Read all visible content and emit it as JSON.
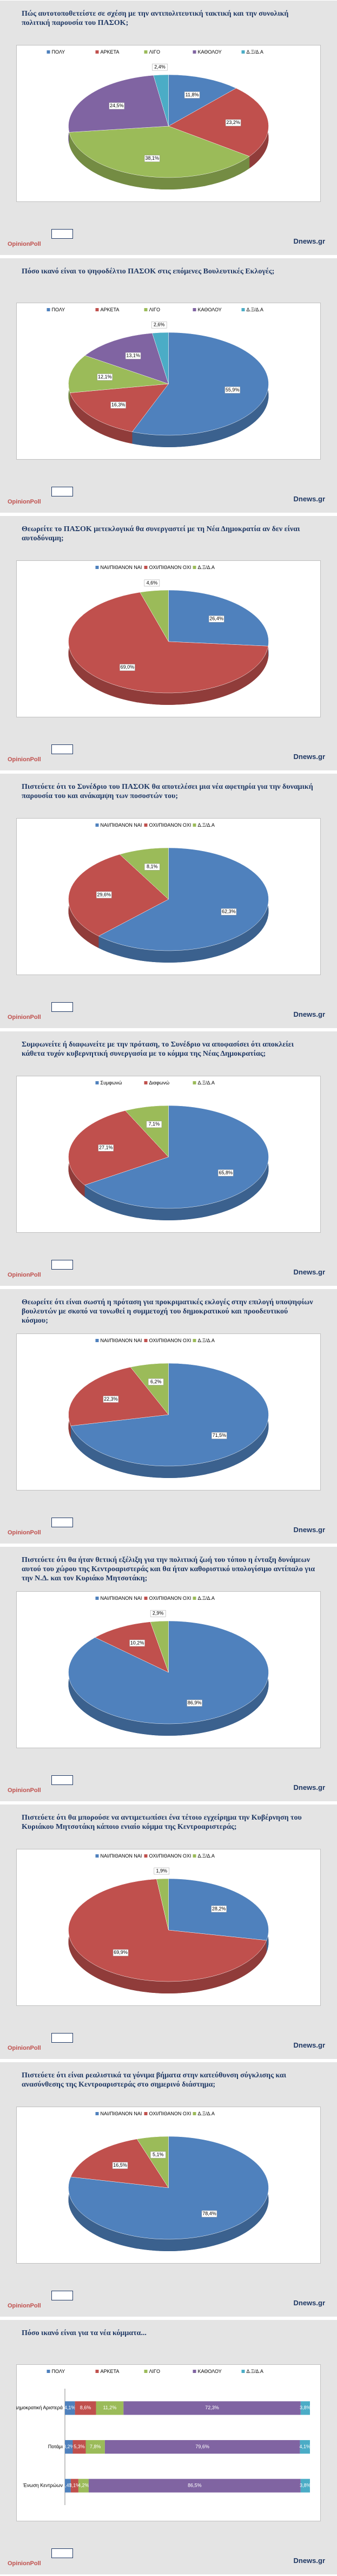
{
  "footer": {
    "logo": "OpinionPoll",
    "site": "Dnews.gr"
  },
  "chart_data": [
    {
      "type": "pie",
      "title": "Πώς αυτοτοποθετείστε σε σχέση με την αντιπολιτευτική τακτική και την συνολική πολιτική παρουσία του ΠΑΣΟΚ;",
      "categories": [
        "ΠΟΛΥ",
        "ΑΡΚΕΤΑ",
        "ΛΙΓΟ",
        "ΚΑΘΟΛΟΥ",
        "Δ.Ξ/Δ.Α"
      ],
      "values": [
        11.8,
        23.2,
        38.1,
        24.5,
        2.4
      ],
      "value_labels": [
        "11,8%",
        "23,2%",
        "38,1%",
        "24,5%",
        "2,4%"
      ],
      "colors": [
        "#4f81bd",
        "#c0504d",
        "#9bbb59",
        "#8064a2",
        "#4bacc6"
      ]
    },
    {
      "type": "pie",
      "title": "Πόσο ικανό είναι το ψηφοδέλτιο ΠΑΣΟΚ στις επόμενες Βουλευτικές Εκλογές;",
      "categories": [
        "ΠΟΛΥ",
        "ΑΡΚΕΤΑ",
        "ΛΙΓΟ",
        "ΚΑΘΟΛΟΥ",
        "Δ.Ξ/Δ.Α"
      ],
      "values": [
        55.9,
        16.3,
        12.1,
        13.1,
        2.6
      ],
      "value_labels": [
        "55,9%",
        "16,3%",
        "12,1%",
        "13,1%",
        "2,6%"
      ],
      "colors": [
        "#4f81bd",
        "#c0504d",
        "#9bbb59",
        "#8064a2",
        "#4bacc6"
      ]
    },
    {
      "type": "pie",
      "title": "Θεωρείτε το ΠΑΣΟΚ μετεκλογικά θα συνεργαστεί με τη Νέα Δημοκρατία αν δεν είναι αυτοδύναμη;",
      "categories": [
        "ΝΑΙ/ΠΙΘΑΝΟΝ ΝΑΙ",
        "ΟΧΙ/ΠΙΘΑΝΟΝ ΟΧΙ",
        "Δ.Ξ/Δ.Α"
      ],
      "values": [
        26.4,
        69.0,
        4.6
      ],
      "value_labels": [
        "26,4%",
        "69,0%",
        "4,6%"
      ],
      "colors": [
        "#4f81bd",
        "#c0504d",
        "#9bbb59"
      ]
    },
    {
      "type": "pie",
      "title": "Πιστεύετε ότι το Συνέδριο του ΠΑΣΟΚ θα αποτελέσει μια νέα αφετηρία για την δυναμική παρουσία του και ανάκαμψη των ποσοστών του;",
      "categories": [
        "ΝΑΙ/ΠΙΘΑΝΟΝ ΝΑΙ",
        "ΟΧΙ/ΠΙΘΑΝΟΝ ΟΧΙ",
        "Δ.Ξ/Δ.Α"
      ],
      "values": [
        62.3,
        29.6,
        8.1
      ],
      "value_labels": [
        "62,3%",
        "29,6%",
        "8,1%"
      ],
      "colors": [
        "#4f81bd",
        "#c0504d",
        "#9bbb59"
      ]
    },
    {
      "type": "pie",
      "title": "Συμφωνείτε ή διαφωνείτε με την πρόταση, το Συνέδριο να αποφασίσει ότι αποκλείει κάθετα τυχόν κυβερνητική συνεργασία με το κόμμα της Νέας Δημοκρατίας;",
      "categories": [
        "Συμφωνώ",
        "Διαφωνώ",
        "Δ.Ξ/Δ.Α"
      ],
      "values": [
        65.8,
        27.1,
        7.1
      ],
      "value_labels": [
        "65,8%",
        "27,1%",
        "7,1%"
      ],
      "colors": [
        "#4f81bd",
        "#c0504d",
        "#9bbb59"
      ]
    },
    {
      "type": "pie",
      "title": "Θεωρείτε ότι είναι σωστή η πρόταση για προκριματικές εκλογές στην επιλογή υποψηφίων βουλευτών με σκοπό να τονωθεί η συμμετοχή του δημοκρατικού και προοδευτικού κόσμου;",
      "categories": [
        "ΝΑΙ/ΠΙΘΑΝΟΝ ΝΑΙ",
        "ΟΧΙ/ΠΙΘΑΝΟΝ ΟΧΙ",
        "Δ.Ξ/Δ.Α"
      ],
      "values": [
        71.5,
        22.3,
        6.2
      ],
      "value_labels": [
        "71,5%",
        "22,3%",
        "6,2%"
      ],
      "colors": [
        "#4f81bd",
        "#c0504d",
        "#9bbb59"
      ]
    },
    {
      "type": "pie",
      "title": "Πιστεύετε ότι θα ήταν θετική εξέλιξη για την πολιτική ζωή του τόπου η ένταξη δυνάμεων αυτού του χώρου της Κεντροαριστεράς και θα ήταν καθοριστικό υπολογίσιμο αντίπαλο για την Ν.Δ. και τον Κυριάκο Μητσοτάκη;",
      "categories": [
        "ΝΑΙ/ΠΙΘΑΝΟΝ ΝΑΙ",
        "ΟΧΙ/ΠΙΘΑΝΟΝ ΟΧΙ",
        "Δ.Ξ/Δ.Α"
      ],
      "values": [
        86.9,
        10.2,
        2.9
      ],
      "value_labels": [
        "86,9%",
        "10,2%",
        "2,9%"
      ],
      "colors": [
        "#4f81bd",
        "#c0504d",
        "#9bbb59"
      ]
    },
    {
      "type": "pie",
      "title": "Πιστεύετε ότι θα μπορούσε να αντιμετωπίσει ένα τέτοιο εγχείρημα την Κυβέρνηση του Κυριάκου Μητσοτάκη κάποιο ενιαίο κόμμα της Κεντροαριστεράς;",
      "categories": [
        "ΝΑΙ/ΠΙΘΑΝΟΝ ΝΑΙ",
        "ΟΧΙ/ΠΙΘΑΝΟΝ ΟΧΙ",
        "Δ.Ξ/Δ.Α"
      ],
      "values": [
        28.2,
        69.9,
        1.9
      ],
      "value_labels": [
        "28,2%",
        "69,9%",
        "1,9%"
      ],
      "colors": [
        "#4f81bd",
        "#c0504d",
        "#9bbb59"
      ]
    },
    {
      "type": "pie",
      "title": "Πιστεύετε ότι είναι ρεαλιστικά τα γόνιμα βήματα στην κατεύθυνση σύγκλισης και ανασύνθεσης της Κεντροαριστεράς στο σημερινό διάστημα;",
      "categories": [
        "ΝΑΙ/ΠΙΘΑΝΟΝ ΝΑΙ",
        "ΟΧΙ/ΠΙΘΑΝΟΝ ΟΧΙ",
        "Δ.Ξ/Δ.Α"
      ],
      "values": [
        78.4,
        16.5,
        5.1
      ],
      "value_labels": [
        "78,4%",
        "16,5%",
        "5,1%"
      ],
      "colors": [
        "#4f81bd",
        "#c0504d",
        "#9bbb59"
      ]
    },
    {
      "type": "stacked_barh",
      "title": "Πόσο ικανό είναι για τα νέα κόμματα...",
      "categories": [
        "Δημοκρατική Αριστερά",
        "Ποτάμι",
        "Ένωση Κεντρώων"
      ],
      "xlim": [
        0,
        100
      ],
      "series": [
        {
          "name": "ΠΟΛΥ",
          "color": "#4f81bd",
          "values": [
            4.1,
            3.2,
            2.4
          ],
          "value_labels": [
            "4,1%",
            "3,2%",
            "2,4%"
          ]
        },
        {
          "name": "ΑΡΚΕΤΑ",
          "color": "#c0504d",
          "values": [
            8.6,
            5.3,
            3.1
          ],
          "value_labels": [
            "8,6%",
            "5,3%",
            "3,1%"
          ]
        },
        {
          "name": "ΛΙΓΟ",
          "color": "#9bbb59",
          "values": [
            11.2,
            7.8,
            4.2
          ],
          "value_labels": [
            "11,2%",
            "7,8%",
            "4,2%"
          ]
        },
        {
          "name": "ΚΑΘΟΛΟΥ",
          "color": "#8064a2",
          "values": [
            72.3,
            79.6,
            86.5
          ],
          "value_labels": [
            "72,3%",
            "79,6%",
            "86,5%"
          ]
        },
        {
          "name": "Δ.Ξ/Δ.Α",
          "color": "#4bacc6",
          "values": [
            3.8,
            4.1,
            3.8
          ],
          "value_labels": [
            "3,8%",
            "4,1%",
            "3,8%"
          ]
        }
      ]
    }
  ]
}
